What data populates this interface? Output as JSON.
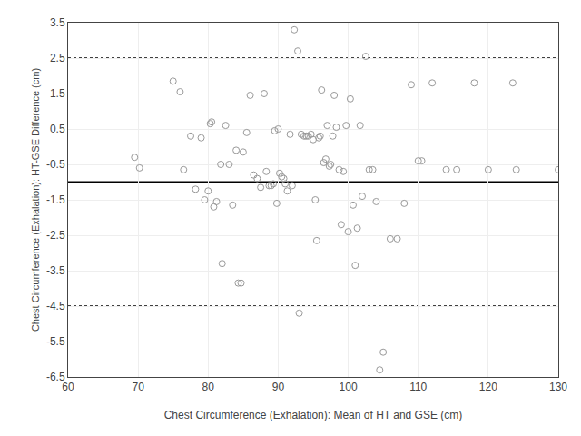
{
  "chart_data": {
    "type": "scatter",
    "xlabel": "Chest Circumference (Exhalation): Mean of HT and GSE (cm)",
    "ylabel": "Chest Circumference (Exhalation): HT-GSE Difference (cm)",
    "xlim": [
      60,
      130
    ],
    "ylim": [
      -6.5,
      3.5
    ],
    "xticks": [
      60,
      70,
      80,
      90,
      100,
      110,
      120,
      130
    ],
    "yticks": [
      3.5,
      2.5,
      1.5,
      0.5,
      -0.5,
      -1.5,
      -2.5,
      -3.5,
      -4.5,
      -5.5,
      -6.5
    ],
    "grid": true,
    "x": [
      69.5,
      70.2,
      75.0,
      76.0,
      76.5,
      77.5,
      78.2,
      79.0,
      79.5,
      80.0,
      80.3,
      80.5,
      80.8,
      81.2,
      81.8,
      82.0,
      82.5,
      83.0,
      83.5,
      84.0,
      84.3,
      84.7,
      85.0,
      85.5,
      86.0,
      86.5,
      87.0,
      87.5,
      88.0,
      88.3,
      88.7,
      89.0,
      89.3,
      89.5,
      89.8,
      90.0,
      90.2,
      90.5,
      90.8,
      91.0,
      91.3,
      91.7,
      92.0,
      92.3,
      92.8,
      93.0,
      93.3,
      93.7,
      94.0,
      94.3,
      94.7,
      95.0,
      95.3,
      95.5,
      95.8,
      96.0,
      96.2,
      96.5,
      96.8,
      97.0,
      97.3,
      97.5,
      97.8,
      98.0,
      98.3,
      98.7,
      99.0,
      99.3,
      99.7,
      100.0,
      100.3,
      100.7,
      101.0,
      101.3,
      101.7,
      102.0,
      102.5,
      103.0,
      103.5,
      104.0,
      104.5,
      105.0,
      106.0,
      107.0,
      108.0,
      109.0,
      110.0,
      110.5,
      112.0,
      114.0,
      115.5,
      118.0,
      120.0,
      123.5,
      124.0,
      130.0
    ],
    "series": [
      {
        "color": "#999999",
        "marker": "circle-open",
        "values": [
          -0.3,
          -0.6,
          1.85,
          1.55,
          -0.65,
          0.3,
          -1.2,
          0.25,
          -1.5,
          -1.25,
          0.65,
          0.7,
          -1.7,
          -1.55,
          -0.5,
          -3.3,
          0.6,
          -0.5,
          -1.65,
          -0.1,
          -3.85,
          -3.85,
          -0.15,
          0.4,
          1.45,
          -0.8,
          -0.9,
          -1.15,
          1.5,
          -0.7,
          -1.1,
          -1.1,
          -1.05,
          0.45,
          -1.6,
          0.5,
          -0.75,
          -0.85,
          -0.9,
          -1.05,
          -1.25,
          0.35,
          -1.1,
          3.3,
          2.7,
          -4.7,
          0.35,
          0.3,
          0.3,
          0.3,
          0.35,
          0.2,
          -1.5,
          -2.65,
          0.25,
          0.3,
          1.6,
          -0.45,
          -0.35,
          0.6,
          -0.55,
          -0.5,
          0.3,
          1.45,
          0.55,
          -0.65,
          -2.2,
          -0.7,
          0.6,
          -2.4,
          1.35,
          -1.65,
          -3.35,
          -2.3,
          0.6,
          -1.4,
          2.55,
          -0.65,
          -0.65,
          -1.55,
          -6.3,
          -5.8,
          -2.6,
          -2.6,
          -1.6,
          1.75,
          -0.4,
          -0.4,
          1.8,
          -0.65,
          -0.65,
          1.8,
          -0.65,
          1.8,
          -0.65,
          -0.65
        ]
      }
    ],
    "hlines": [
      {
        "value": -1.0,
        "color": "#000000",
        "line_style": "solid"
      },
      {
        "value": 2.5,
        "color": "#000000",
        "line_style": "dot"
      },
      {
        "value": -4.5,
        "color": "#000000",
        "line_style": "dot"
      }
    ]
  }
}
